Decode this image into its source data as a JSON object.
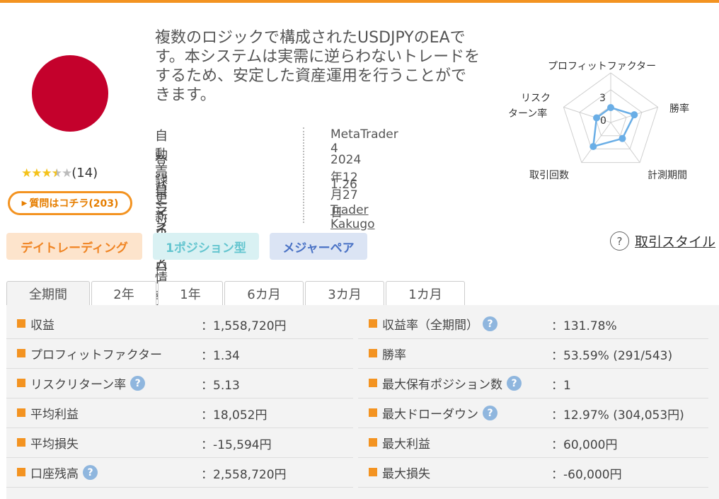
{
  "header": {
    "accent": "#f39321"
  },
  "product": {
    "flag": "japan-flag",
    "rating": {
      "stars_filled": 3.5,
      "stars_total": 5,
      "count_text": "(14)"
    },
    "qa_button": "質問はコチラ(203)",
    "description": "複数のロジックで構成されたUSDJPYのEAです。本システムは実需に逆らわないトレードをするため、安定した資産運用を行うことができます。"
  },
  "info": {
    "rows": [
      {
        "label": "自動売買システム",
        "value": "MetaTrader 4"
      },
      {
        "label": "登録更新日",
        "value": "2024年12月27日"
      },
      {
        "label": "バージョン情報",
        "value": "1.26"
      },
      {
        "label": "マイプロフィール",
        "value": "Trader Kakugo"
      }
    ]
  },
  "radar": {
    "labels": {
      "pf": "プロフィットファクター",
      "winrate": "勝率",
      "period": "計測期間",
      "trades": "取引回数",
      "risk_l1": "リスク",
      "risk_l2": "ターン率"
    },
    "scale_labels": [
      "3",
      "0"
    ],
    "values": {
      "pf": 0.3,
      "winrate": 0.5,
      "period": 0.4,
      "trades": 0.6,
      "risk": 0.3
    },
    "color": "#6aaee6"
  },
  "tags": [
    {
      "label": "デイトレーディング"
    },
    {
      "label": "1ポジション型"
    },
    {
      "label": "メジャーペア"
    }
  ],
  "style_link": {
    "icon": "?",
    "label": "取引スタイル"
  },
  "tabs": [
    {
      "label": "全期間"
    },
    {
      "label": "2年"
    },
    {
      "label": "1年"
    },
    {
      "label": "6カ月"
    },
    {
      "label": "3カ月"
    },
    {
      "label": "1カ月"
    }
  ],
  "stats": {
    "left": [
      {
        "label": "収益",
        "value": "：1,558,720円"
      },
      {
        "label": "プロフィットファクター",
        "value": "：1.34"
      },
      {
        "label": "リスクリターン率",
        "value": "：5.13"
      },
      {
        "label": "平均利益",
        "value": "：18,052円"
      },
      {
        "label": "平均損失",
        "value": "：-15,594円"
      },
      {
        "label": "口座残高",
        "value": "：2,558,720円"
      }
    ],
    "right": [
      {
        "label": "収益率（全期間）",
        "value": "：131.78%"
      },
      {
        "label": "勝率",
        "value": "：53.59% (291/543)"
      },
      {
        "label": "最大保有ポジション数",
        "value": "：1"
      },
      {
        "label": "最大ドローダウン",
        "value": "：12.97% (304,053円)"
      },
      {
        "label": "最大利益",
        "value": "：60,000円"
      },
      {
        "label": "最大損失",
        "value": "：-60,000円"
      }
    ],
    "help_icon": "?"
  }
}
